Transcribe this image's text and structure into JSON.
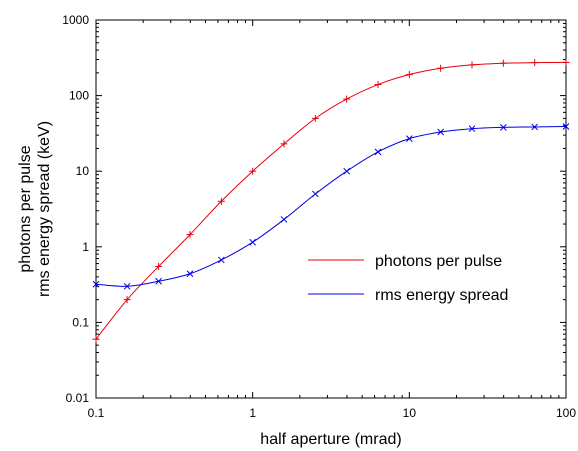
{
  "chart_data": {
    "type": "line",
    "xlabel": "half aperture (mrad)",
    "ylabel_lines": [
      "photons per pulse",
      "rms energy spread (keV)"
    ],
    "x_scale": "log",
    "y_scale": "log",
    "xlim": [
      0.1,
      100
    ],
    "ylim": [
      0.01,
      1000
    ],
    "x_ticks": [
      {
        "value": 0.1,
        "label": "0.1"
      },
      {
        "value": 1,
        "label": "1"
      },
      {
        "value": 10,
        "label": "10"
      },
      {
        "value": 100,
        "label": "100"
      }
    ],
    "y_ticks": [
      {
        "value": 0.01,
        "label": "0.01"
      },
      {
        "value": 0.1,
        "label": "0.1"
      },
      {
        "value": 1,
        "label": "1"
      },
      {
        "value": 10,
        "label": "10"
      },
      {
        "value": 100,
        "label": "100"
      },
      {
        "value": 1000,
        "label": "1000"
      }
    ],
    "grid": false,
    "legend_position": "center-right",
    "series": [
      {
        "name": "photons per pulse",
        "color": "#e8000b",
        "marker": "plus",
        "x": [
          0.1,
          0.158,
          0.251,
          0.398,
          0.631,
          1.0,
          1.585,
          2.512,
          3.981,
          6.31,
          10.0,
          15.85,
          25.12,
          39.81,
          63.1,
          100
        ],
        "y": [
          0.06,
          0.2,
          0.55,
          1.45,
          4.0,
          10.0,
          23.0,
          50.0,
          90.0,
          140.0,
          190.0,
          230.0,
          255.0,
          268.0,
          273.0,
          275.0
        ]
      },
      {
        "name": "rms energy spread",
        "color": "#0000e0",
        "marker": "cross",
        "x": [
          0.1,
          0.158,
          0.251,
          0.398,
          0.631,
          1.0,
          1.585,
          2.512,
          3.981,
          6.31,
          10.0,
          15.85,
          25.12,
          39.81,
          63.1,
          100
        ],
        "y": [
          0.32,
          0.3,
          0.35,
          0.44,
          0.67,
          1.15,
          2.3,
          5.0,
          10.0,
          18.0,
          27.0,
          33.0,
          36.5,
          38.0,
          38.5,
          39.0
        ]
      }
    ]
  }
}
